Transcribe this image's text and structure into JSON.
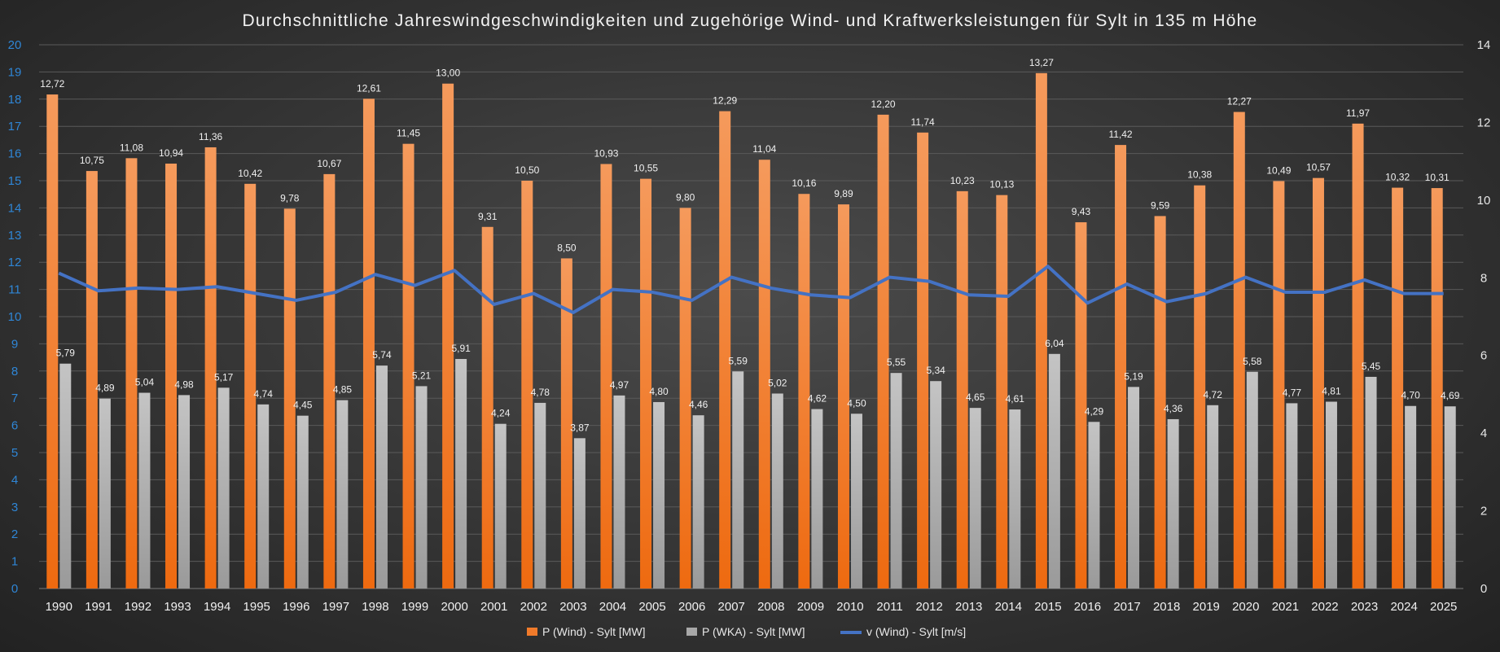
{
  "chart_data": {
    "type": "bar",
    "title": "Durchschnittliche Jahreswindgeschwindigkeiten und zugehörige Wind- und Kraftwerksleistungen für Sylt in 135 m Höhe",
    "categories": [
      "1990",
      "1991",
      "1992",
      "1993",
      "1994",
      "1995",
      "1996",
      "1997",
      "1998",
      "1999",
      "2000",
      "2001",
      "2002",
      "2003",
      "2004",
      "2005",
      "2006",
      "2007",
      "2008",
      "2009",
      "2010",
      "2011",
      "2012",
      "2013",
      "2014",
      "2015",
      "2016",
      "2017",
      "2018",
      "2019",
      "2020",
      "2021",
      "2022",
      "2023",
      "2024",
      "2025"
    ],
    "series": [
      {
        "name": "P (Wind) - Sylt [MW]",
        "type": "bar",
        "axis": "right",
        "color": "#f07a2a",
        "values": [
          12.72,
          10.75,
          11.08,
          10.94,
          11.36,
          10.42,
          9.78,
          10.67,
          12.61,
          11.45,
          13.0,
          9.31,
          10.5,
          8.5,
          10.93,
          10.55,
          9.8,
          12.29,
          11.04,
          10.16,
          9.89,
          12.2,
          11.74,
          10.23,
          10.13,
          13.27,
          9.43,
          11.42,
          9.59,
          10.38,
          12.27,
          10.49,
          10.57,
          11.97,
          10.32,
          10.31
        ],
        "labels": [
          "12,72",
          "10,75",
          "11,08",
          "10,94",
          "11,36",
          "10,42",
          "9,78",
          "10,67",
          "12,61",
          "11,45",
          "13,00",
          "9,31",
          "10,50",
          "8,50",
          "10,93",
          "10,55",
          "9,80",
          "12,29",
          "11,04",
          "10,16",
          "9,89",
          "12,20",
          "11,74",
          "10,23",
          "10,13",
          "13,27",
          "9,43",
          "11,42",
          "9,59",
          "10,38",
          "12,27",
          "10,49",
          "10,57",
          "11,97",
          "10,32",
          "10,31"
        ]
      },
      {
        "name": "P (WKA) - Sylt [MW]",
        "type": "bar",
        "axis": "right",
        "color": "#a8a8a8",
        "values": [
          5.79,
          4.89,
          5.04,
          4.98,
          5.17,
          4.74,
          4.45,
          4.85,
          5.74,
          5.21,
          5.91,
          4.24,
          4.78,
          3.87,
          4.97,
          4.8,
          4.46,
          5.59,
          5.02,
          4.62,
          4.5,
          5.55,
          5.34,
          4.65,
          4.61,
          6.04,
          4.29,
          5.19,
          4.36,
          4.72,
          5.58,
          4.77,
          4.81,
          5.45,
          4.7,
          4.69
        ],
        "labels": [
          "5,79",
          "4,89",
          "5,04",
          "4,98",
          "5,17",
          "4,74",
          "4,45",
          "4,85",
          "5,74",
          "5,21",
          "5,91",
          "4,24",
          "4,78",
          "3,87",
          "4,97",
          "4,80",
          "4,46",
          "5,59",
          "5,02",
          "4,62",
          "4,50",
          "5,55",
          "5,34",
          "4,65",
          "4,61",
          "6,04",
          "4,29",
          "5,19",
          "4,36",
          "4,72",
          "5,58",
          "4,77",
          "4,81",
          "5,45",
          "4,70",
          "4,69"
        ]
      },
      {
        "name": "v (Wind) - Sylt [m/s]",
        "type": "line",
        "axis": "left",
        "color": "#4472c4",
        "values": [
          11.6,
          10.95,
          11.05,
          11.0,
          11.1,
          10.85,
          10.6,
          10.9,
          11.55,
          11.15,
          11.7,
          10.45,
          10.85,
          10.15,
          11.0,
          10.9,
          10.6,
          11.45,
          11.05,
          10.8,
          10.7,
          11.45,
          11.3,
          10.8,
          10.75,
          11.85,
          10.5,
          11.2,
          10.55,
          10.85,
          11.45,
          10.9,
          10.9,
          11.35,
          10.85,
          10.85
        ]
      }
    ],
    "y_left": {
      "min": 0,
      "max": 20,
      "step": 1,
      "tick_color": "#2f86d6"
    },
    "y_right": {
      "min": 0,
      "max": 14,
      "step": 2
    },
    "grid": true,
    "legend_position": "bottom"
  }
}
